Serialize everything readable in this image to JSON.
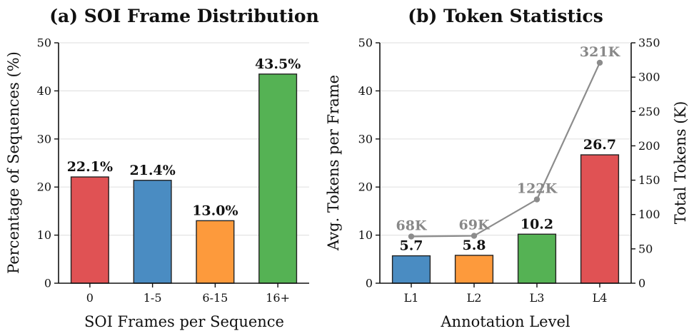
{
  "chart_data": [
    {
      "type": "bar",
      "title": "(a) SOI Frame Distribution",
      "xlabel": "SOI Frames per Sequence",
      "ylabel": "Percentage of Sequences (%)",
      "ylim": [
        0,
        50
      ],
      "yticks": [
        "0",
        "10",
        "20",
        "30",
        "40",
        "50"
      ],
      "grid": true,
      "categories": [
        "0",
        "1-5",
        "6-15",
        "16+"
      ],
      "values": [
        22.1,
        21.4,
        13.0,
        43.5
      ],
      "labels": [
        "22.1%",
        "21.4%",
        "13.0%",
        "43.5%"
      ],
      "colors": [
        "#e05254",
        "#4a8cc2",
        "#fd9a3c",
        "#55b254"
      ]
    },
    {
      "type": "bar",
      "title": "(b) Token Statistics",
      "xlabel": "Annotation Level",
      "ylabel": "Avg. Tokens per Frame",
      "ylabel_right": "Total Tokens (K)",
      "ylim": [
        0,
        50
      ],
      "ylim_right": [
        0,
        350
      ],
      "yticks": [
        "0",
        "10",
        "20",
        "30",
        "40",
        "50"
      ],
      "yticks_right": [
        "0",
        "50",
        "100",
        "150",
        "200",
        "250",
        "300",
        "350"
      ],
      "grid": true,
      "categories": [
        "L1",
        "L2",
        "L3",
        "L4"
      ],
      "values": [
        5.7,
        5.8,
        10.2,
        26.7
      ],
      "labels": [
        "5.7",
        "5.8",
        "10.2",
        "26.7"
      ],
      "colors": [
        "#4a8cc2",
        "#fd9a3c",
        "#55b254",
        "#e05254"
      ],
      "line_series": {
        "values": [
          68,
          69,
          122,
          321
        ],
        "labels": [
          "68K",
          "69K",
          "122K",
          "321K"
        ],
        "color": "#8c8c8c"
      }
    }
  ]
}
